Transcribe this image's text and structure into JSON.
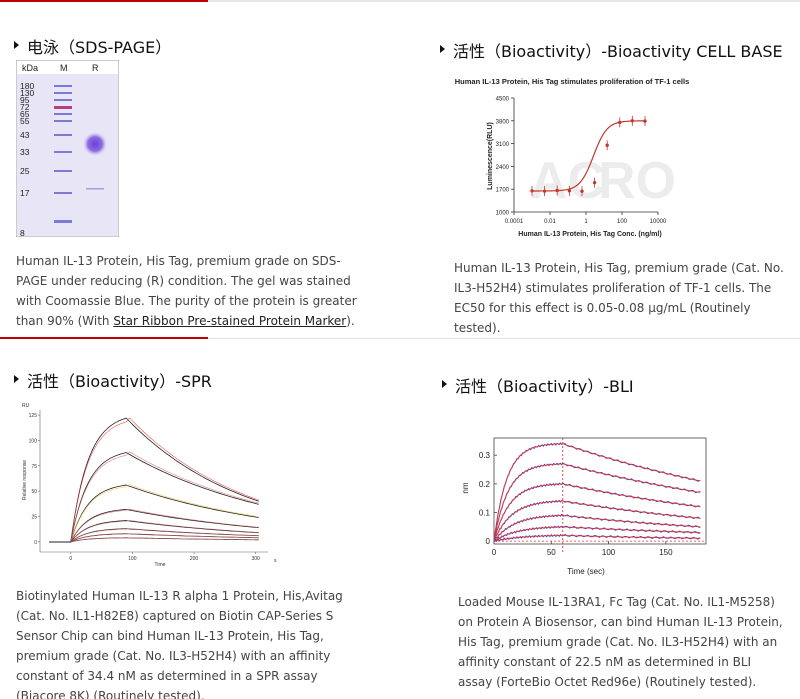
{
  "sections": {
    "sds_page": {
      "title": "电泳（SDS-PAGE）",
      "gel": {
        "kda_label": "kDa",
        "lane_m": "M",
        "lane_r": "R",
        "markers": [
          "180",
          "130",
          "95",
          "72",
          "65",
          "55",
          "43",
          "33",
          "25",
          "17",
          "8"
        ]
      },
      "caption_before": "Human IL-13 Protein, His Tag, premium grade on SDS-PAGE under reducing (R) condition. The gel was stained with Coomassie Blue. The purity of the protein is greater than 90% (With ",
      "caption_link": "Star Ribbon Pre-stained Protein Marker",
      "caption_after": ")."
    },
    "cell_based": {
      "title": "活性（Bioactivity）-Bioactivity CELL BASE",
      "caption": "Human IL-13 Protein, His Tag, premium grade (Cat. No. IL3-H52H4) stimulates proliferation of TF-1 cells. The EC50 for this effect is 0.05-0.08 μg/mL (Routinely tested)."
    },
    "spr": {
      "title": "活性（Bioactivity）-SPR",
      "caption": "Biotinylated Human IL-13 R alpha 1 Protein, His,Avitag (Cat. No. IL1-H82E8) captured on Biotin CAP-Series S Sensor Chip can bind Human IL-13 Protein, His Tag, premium grade (Cat. No. IL3-H52H4) with an affinity constant of 34.4 nM as determined in a SPR assay (Biacore 8K) (Routinely tested)."
    },
    "bli": {
      "title": "活性（Bioactivity）-BLI",
      "caption": "Loaded Mouse IL-13RA1, Fc Tag (Cat. No. IL1-M5258) on Protein A Biosensor, can bind Human IL-13 Protein, His Tag, premium grade (Cat. No. IL3-H52H4) with an affinity constant of 22.5 nM as determined in BLI assay (ForteBio Octet Red96e) (Routinely tested)."
    }
  },
  "chart_data": [
    {
      "type": "line",
      "title": "Human IL-13 Protein, His Tag stimulates proliferation of TF-1 cells",
      "xlabel": "Human IL-13 Protein, His Tag Conc. (ng/ml)",
      "ylabel": "Luminescence(RLU)",
      "x_scale": "log",
      "x_ticks": [
        "0.0001",
        "0.01",
        "1",
        "100",
        "10000"
      ],
      "y_ticks": [
        "1000",
        "1700",
        "2400",
        "3100",
        "3800",
        "4500"
      ],
      "ylim": [
        1000,
        4500
      ],
      "color": "#c0392b",
      "x": [
        0.001,
        0.005,
        0.025,
        0.12,
        0.6,
        3,
        15,
        75,
        375,
        1900
      ],
      "y": [
        1650,
        1640,
        1660,
        1650,
        1640,
        1900,
        3050,
        3750,
        3800,
        3790
      ]
    },
    {
      "type": "line",
      "ylabel": "Relative response",
      "xlabel": "Time",
      "axis_unit_top": "RU",
      "axis_unit_right": "s",
      "x_ticks": [
        "0",
        "100",
        "200",
        "300"
      ],
      "y_ticks": [
        "0",
        "25",
        "50",
        "75",
        "100",
        "125"
      ],
      "xlim": [
        -50,
        320
      ],
      "ylim": [
        -10,
        130
      ],
      "association_start": 0,
      "dissociation_start": 90,
      "series_peaks": [
        122,
        88,
        56,
        32,
        21,
        13,
        8,
        4
      ],
      "series_end": [
        40,
        37,
        24,
        14,
        9,
        6,
        4,
        2
      ]
    },
    {
      "type": "line",
      "ylabel": "nm",
      "xlabel": "Time (sec)",
      "x_ticks": [
        "0",
        "50",
        "100",
        "150"
      ],
      "y_ticks": [
        "0",
        "0.1",
        "0.2",
        "0.3"
      ],
      "xlim": [
        0,
        185
      ],
      "ylim": [
        -0.01,
        0.36
      ],
      "dissociation_start": 60,
      "series_peaks": [
        0.34,
        0.27,
        0.2,
        0.14,
        0.09,
        0.05,
        0.02
      ],
      "series_end": [
        0.21,
        0.17,
        0.12,
        0.08,
        0.05,
        0.03,
        0.01
      ]
    }
  ]
}
